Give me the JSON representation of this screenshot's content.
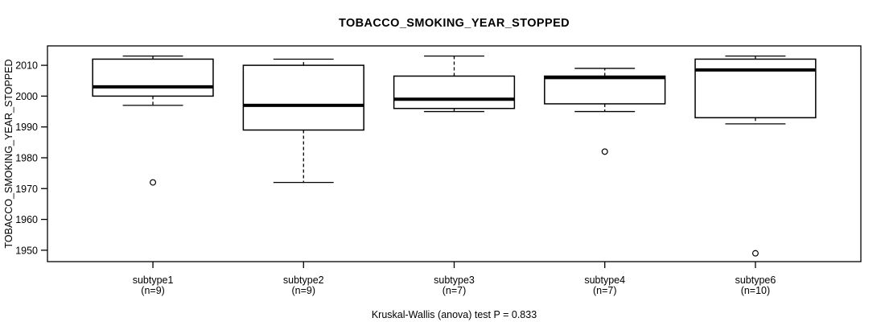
{
  "chart_data": {
    "type": "boxplot",
    "title": "TOBACCO_SMOKING_YEAR_STOPPED",
    "ylabel": "TOBACCO_SMOKING_YEAR_STOPPED",
    "caption": "Kruskal-Wallis (anova) test P = 0.833",
    "yticks": [
      1950,
      1960,
      1970,
      1980,
      1990,
      2000,
      2010
    ],
    "ylim": [
      1946.3,
      2016.3
    ],
    "grid": false,
    "legend": "none",
    "colors": {
      "line": "#000000",
      "background": "#ffffff"
    },
    "groups": [
      {
        "label": "subtype1",
        "count_label": "(n=9)",
        "whisker_low": 1997,
        "q1": 2000,
        "median": 2003,
        "q3": 2012,
        "whisker_high": 2013,
        "outliers": [
          1972
        ]
      },
      {
        "label": "subtype2",
        "count_label": "(n=9)",
        "whisker_low": 1972,
        "q1": 1989,
        "median": 1997,
        "q3": 2010,
        "whisker_high": 2012,
        "outliers": []
      },
      {
        "label": "subtype3",
        "count_label": "(n=7)",
        "whisker_low": 1995,
        "q1": 1996,
        "median": 1999,
        "q3": 2006.5,
        "whisker_high": 2013,
        "outliers": []
      },
      {
        "label": "subtype4",
        "count_label": "(n=7)",
        "whisker_low": 1995,
        "q1": 1997.5,
        "median": 2006,
        "q3": 2006.5,
        "whisker_high": 2009,
        "outliers": [
          1982
        ]
      },
      {
        "label": "subtype6",
        "count_label": "(n=10)",
        "whisker_low": 1991,
        "q1": 1993,
        "median": 2008.5,
        "q3": 2012,
        "whisker_high": 2013,
        "outliers": [
          1949
        ]
      }
    ]
  }
}
